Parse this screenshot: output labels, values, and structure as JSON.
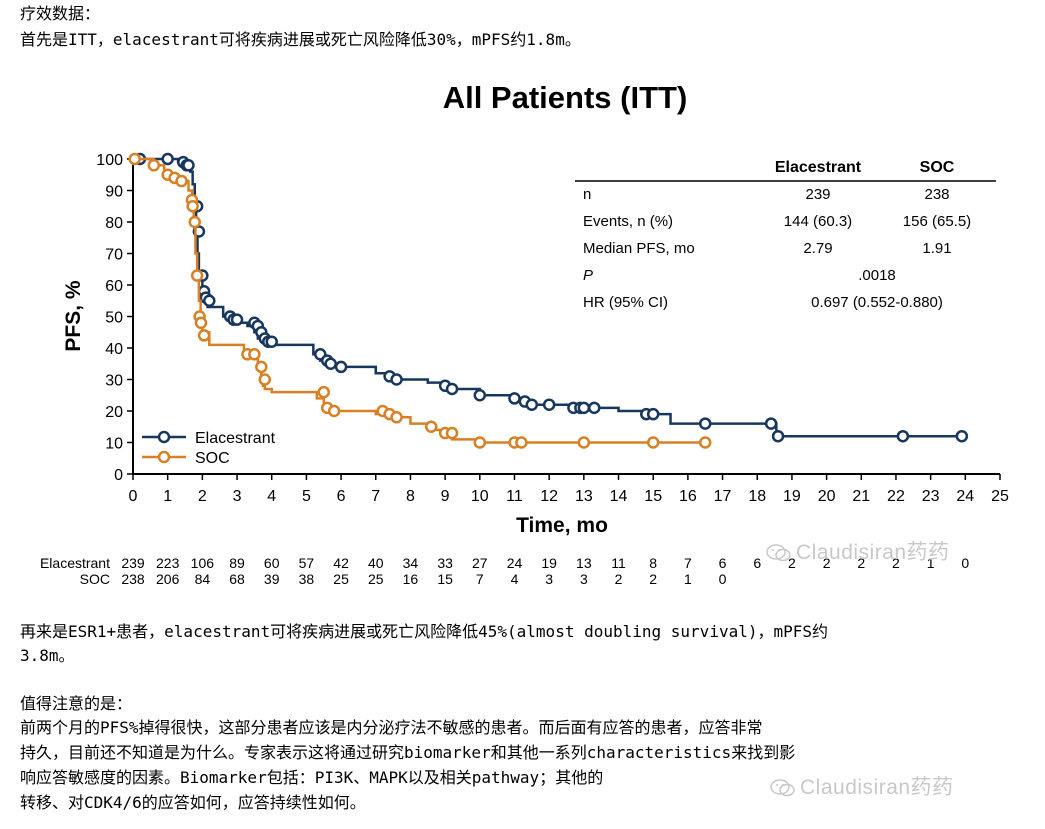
{
  "article": {
    "intro_heading": "疗效数据：",
    "intro_line": "首先是ITT，elacestrant可将疾病进展或死亡风险降低30%，mPFS约1.8m。",
    "esr1_line1": "再来是ESR1+患者，elacestrant可将疾病进展或死亡风险降低45%(almost doubling survival)，mPFS约",
    "esr1_line2": "3.8m。",
    "note_heading": "值得注意的是：",
    "note_line1": "前两个月的PFS%掉得很快，这部分患者应该是内分泌疗法不敏感的患者。而后面有应答的患者，应答非常",
    "note_line2": "持久，目前还不知道是为什么。专家表示这将通过研究biomarker和其他一系列characteristics来找到影",
    "note_line3": "响应答敏感度的因素。Biomarker包括：PI3K、MAPK以及相关pathway；其他的",
    "note_line3_tail": "转移、对CDK4/6的应答如何，应答持续性如何。"
  },
  "watermark": {
    "text": "Claudisiran药药",
    "icon": "wechat-icon"
  },
  "colors": {
    "elacestrant": "#17375e",
    "soc": "#d98024",
    "text": "#000000"
  },
  "chart_data": {
    "type": "line",
    "title": "All Patients (ITT)",
    "xlabel": "Time, mo",
    "ylabel": "PFS, %",
    "xlim": [
      0,
      25
    ],
    "ylim": [
      0,
      100
    ],
    "xticks": [
      0,
      1,
      2,
      3,
      4,
      5,
      6,
      7,
      8,
      9,
      10,
      11,
      12,
      13,
      14,
      15,
      16,
      17,
      18,
      19,
      20,
      21,
      22,
      23,
      24,
      25
    ],
    "yticks": [
      0,
      10,
      20,
      30,
      40,
      50,
      60,
      70,
      80,
      90,
      100
    ],
    "grid": false,
    "legend_position": "bottom-left",
    "series": [
      {
        "name": "Elacestrant",
        "color": "#17375e",
        "x": [
          0,
          1.0,
          1.3,
          1.55,
          1.65,
          1.72,
          1.78,
          1.82,
          1.86,
          1.9,
          2.0,
          2.15,
          2.6,
          2.9,
          3.1,
          3.3,
          3.5,
          3.6,
          3.7,
          3.8,
          4.0,
          5.2,
          5.4,
          5.6,
          6.0,
          7.0,
          7.5,
          8.5,
          9.0,
          9.2,
          10.0,
          11.0,
          11.3,
          11.5,
          12.0,
          12.6,
          13.0,
          13.3,
          14.0,
          14.8,
          15.0,
          15.5,
          16.5,
          18.4,
          18.55,
          19.0,
          22.0,
          23.9
        ],
        "y": [
          100,
          100,
          99,
          98,
          96,
          92,
          85,
          77,
          70,
          63,
          58,
          53,
          50,
          49,
          48,
          47,
          45,
          43,
          42,
          41,
          41,
          38,
          36,
          35,
          34,
          32,
          30,
          29,
          28,
          27,
          25,
          24,
          23,
          22,
          22,
          21,
          21,
          21,
          20,
          19,
          19,
          16,
          16,
          16,
          12,
          12,
          12,
          12
        ],
        "censor_x": [
          0.2,
          1.0,
          1.45,
          1.55,
          1.6,
          1.85,
          1.9,
          2.0,
          2.05,
          2.1,
          2.2,
          2.8,
          2.9,
          3.0,
          3.5,
          3.6,
          3.7,
          3.8,
          3.9,
          4.0,
          5.4,
          5.6,
          5.7,
          6.0,
          7.4,
          7.6,
          9.0,
          9.2,
          10.0,
          11.0,
          11.3,
          11.5,
          12.0,
          12.7,
          12.9,
          13.0,
          13.3,
          14.8,
          15.0,
          16.5,
          18.4,
          18.6,
          22.2,
          23.9
        ],
        "censor_y": [
          100,
          100,
          99,
          98,
          98,
          85,
          77,
          63,
          58,
          56,
          55,
          50,
          49,
          49,
          48,
          47,
          45,
          43,
          42,
          42,
          38,
          36,
          35,
          34,
          31,
          30,
          28,
          27,
          25,
          24,
          23,
          22,
          22,
          21,
          21,
          21,
          21,
          19,
          19,
          16,
          16,
          12,
          12,
          12
        ]
      },
      {
        "name": "SOC",
        "color": "#d98024",
        "x": [
          0,
          0.6,
          0.9,
          1.2,
          1.5,
          1.6,
          1.7,
          1.75,
          1.8,
          1.85,
          1.9,
          1.95,
          2.0,
          2.2,
          3.2,
          3.5,
          3.6,
          3.7,
          3.75,
          3.8,
          4.0,
          5.3,
          5.5,
          5.7,
          7.0,
          7.5,
          8.0,
          8.6,
          9.0,
          9.2,
          10.0,
          11.0,
          11.2,
          12.0,
          13.0,
          15.0,
          16.5
        ],
        "y": [
          100,
          98,
          95,
          94,
          93,
          90,
          85,
          80,
          70,
          62,
          55,
          50,
          45,
          41,
          38,
          37,
          34,
          30,
          28,
          27,
          26,
          24,
          21,
          20,
          19,
          18,
          16,
          14,
          13,
          11,
          10,
          10,
          10,
          10,
          10,
          10,
          10
        ],
        "censor_x": [
          0.05,
          0.6,
          1.0,
          1.2,
          1.4,
          1.7,
          1.72,
          1.78,
          1.85,
          1.92,
          1.96,
          2.05,
          3.3,
          3.5,
          3.7,
          3.8,
          5.5,
          5.6,
          5.8,
          7.2,
          7.4,
          7.6,
          8.6,
          9.0,
          9.2,
          10.0,
          11.0,
          11.2,
          13.0,
          15.0,
          16.5
        ],
        "censor_y": [
          100,
          98,
          95,
          94,
          93,
          87,
          85,
          80,
          63,
          50,
          48,
          44,
          38,
          38,
          34,
          30,
          26,
          21,
          20,
          20,
          19,
          18,
          15,
          13,
          13,
          10,
          10,
          10,
          10,
          10,
          10
        ]
      }
    ],
    "annotation_table": {
      "columns": [
        "",
        "Elacestrant",
        "SOC"
      ],
      "rows": [
        [
          "n",
          "239",
          "238"
        ],
        [
          "Events, n (%)",
          "144 (60.3)",
          "156 (65.5)"
        ],
        [
          "Median PFS, mo",
          "2.79",
          "1.91"
        ],
        [
          "P",
          ".0018",
          ""
        ],
        [
          "HR (95% CI)",
          "0.697 (0.552-0.880)",
          ""
        ]
      ]
    },
    "at_risk": {
      "times": [
        0,
        1,
        2,
        3,
        4,
        5,
        6,
        7,
        8,
        9,
        10,
        11,
        12,
        13,
        14,
        15,
        16,
        17,
        18,
        19,
        20,
        21,
        22,
        23,
        24
      ],
      "rows": [
        {
          "label": "Elacestrant",
          "values": [
            "239",
            "223",
            "106",
            "89",
            "60",
            "57",
            "42",
            "40",
            "34",
            "33",
            "27",
            "24",
            "19",
            "13",
            "11",
            "8",
            "7",
            "6",
            "6",
            "2",
            "2",
            "2",
            "2",
            "1",
            "0"
          ]
        },
        {
          "label": "SOC",
          "values": [
            "238",
            "206",
            "84",
            "68",
            "39",
            "38",
            "25",
            "25",
            "16",
            "15",
            "7",
            "4",
            "3",
            "3",
            "2",
            "2",
            "1",
            "0"
          ]
        }
      ]
    }
  }
}
